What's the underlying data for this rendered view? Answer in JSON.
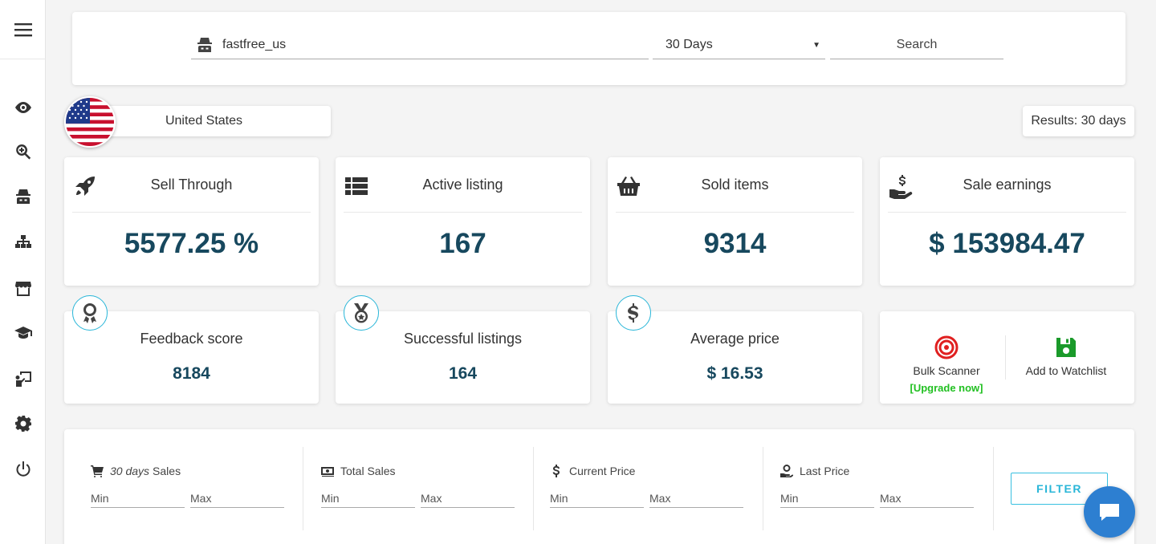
{
  "search": {
    "username": "fastfree_us",
    "period": "30 Days",
    "search_label": "Search"
  },
  "country": {
    "name": "United States"
  },
  "results_label": "Results: 30 days",
  "stats": [
    {
      "title": "Sell Through",
      "value": "5577.25 %",
      "icon": "rocket-icon"
    },
    {
      "title": "Active listing",
      "value": "167",
      "icon": "list-icon"
    },
    {
      "title": "Sold items",
      "value": "9314",
      "icon": "basket-icon"
    },
    {
      "title": "Sale earnings",
      "value": "$ 153984.47",
      "icon": "money-hand-icon"
    }
  ],
  "mini_stats": [
    {
      "title": "Feedback score",
      "value": "8184",
      "icon": "award-icon"
    },
    {
      "title": "Successful listings",
      "value": "164",
      "icon": "medal-icon"
    },
    {
      "title": "Average price",
      "value": "$ 16.53",
      "icon": "dollar-icon"
    }
  ],
  "actions": {
    "bulk_scanner": "Bulk Scanner",
    "upgrade": "[Upgrade now]",
    "watchlist": "Add to Watchlist"
  },
  "filters": {
    "columns": [
      {
        "italic": "30 days",
        "label": "Sales",
        "min": "Min",
        "max": "Max",
        "icon": "cart-icon"
      },
      {
        "italic": "",
        "label": "Total Sales",
        "min": "Min",
        "max": "Max",
        "icon": "cash-icon"
      },
      {
        "italic": "",
        "label": "Current Price",
        "min": "Min",
        "max": "Max",
        "icon": "dollar-icon"
      },
      {
        "italic": "",
        "label": "Last Price",
        "min": "Min",
        "max": "Max",
        "icon": "coin-hand-icon"
      }
    ],
    "filter_label": "FILTER"
  },
  "colors": {
    "value_text": "#17485e",
    "accent": "#29b6d8",
    "upgrade": "#22c022",
    "target_red": "#e02020",
    "save_green": "#1a9a2a"
  }
}
